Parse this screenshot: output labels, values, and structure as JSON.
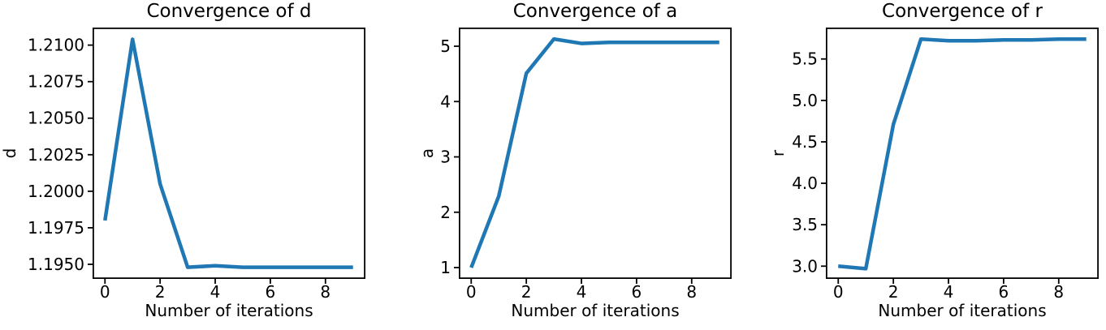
{
  "figure": {
    "background": "#ffffff",
    "accent_line_color": "#1f77b4"
  },
  "chart_data": [
    {
      "type": "line",
      "title": "Convergence of d",
      "xlabel": "Number of iterations",
      "ylabel": "d",
      "x": [
        0,
        1,
        2,
        3,
        4,
        5,
        6,
        7,
        8,
        9
      ],
      "y": [
        1.198,
        1.2104,
        1.2005,
        1.1948,
        1.1949,
        1.1948,
        1.1948,
        1.1948,
        1.1948,
        1.1948
      ],
      "xlim": [
        -0.45,
        9.45
      ],
      "ylim": [
        1.194,
        1.2112
      ],
      "xticks": {
        "values": [
          0,
          2,
          4,
          6,
          8
        ],
        "labels": [
          "0",
          "2",
          "4",
          "6",
          "8"
        ]
      },
      "yticks": {
        "values": [
          1.195,
          1.1975,
          1.2,
          1.2025,
          1.205,
          1.2075,
          1.21
        ],
        "labels": [
          "1.1950",
          "1.1975",
          "1.2000",
          "1.2025",
          "1.2050",
          "1.2075",
          "1.2100"
        ]
      },
      "line_color": "#1f77b4",
      "linewidth": 4.5,
      "grid": false,
      "legend": null
    },
    {
      "type": "line",
      "title": "Convergence of a",
      "xlabel": "Number of iterations",
      "ylabel": "a",
      "x": [
        0,
        1,
        2,
        3,
        4,
        5,
        6,
        7,
        8,
        9
      ],
      "y": [
        1.0,
        2.29,
        4.51,
        5.13,
        5.05,
        5.07,
        5.07,
        5.07,
        5.07,
        5.07
      ],
      "xlim": [
        -0.45,
        9.45
      ],
      "ylim": [
        0.795,
        5.337
      ],
      "xticks": {
        "values": [
          0,
          2,
          4,
          6,
          8
        ],
        "labels": [
          "0",
          "2",
          "4",
          "6",
          "8"
        ]
      },
      "yticks": {
        "values": [
          1,
          2,
          3,
          4,
          5
        ],
        "labels": [
          "1",
          "2",
          "3",
          "4",
          "5"
        ]
      },
      "line_color": "#1f77b4",
      "linewidth": 4.5,
      "grid": false,
      "legend": null
    },
    {
      "type": "line",
      "title": "Convergence of r",
      "xlabel": "Number of iterations",
      "ylabel": "r",
      "x": [
        0,
        1,
        2,
        3,
        4,
        5,
        6,
        7,
        8,
        9
      ],
      "y": [
        3.0,
        2.97,
        4.71,
        5.74,
        5.72,
        5.72,
        5.73,
        5.73,
        5.74,
        5.74
      ],
      "xlim": [
        -0.45,
        9.45
      ],
      "ylim": [
        2.846,
        5.879
      ],
      "xticks": {
        "values": [
          0,
          2,
          4,
          6,
          8
        ],
        "labels": [
          "0",
          "2",
          "4",
          "6",
          "8"
        ]
      },
      "yticks": {
        "values": [
          3.0,
          3.5,
          4.0,
          4.5,
          5.0,
          5.5
        ],
        "labels": [
          "3.0",
          "3.5",
          "4.0",
          "4.5",
          "5.0",
          "5.5"
        ]
      },
      "line_color": "#1f77b4",
      "linewidth": 4.5,
      "grid": false,
      "legend": null
    }
  ]
}
